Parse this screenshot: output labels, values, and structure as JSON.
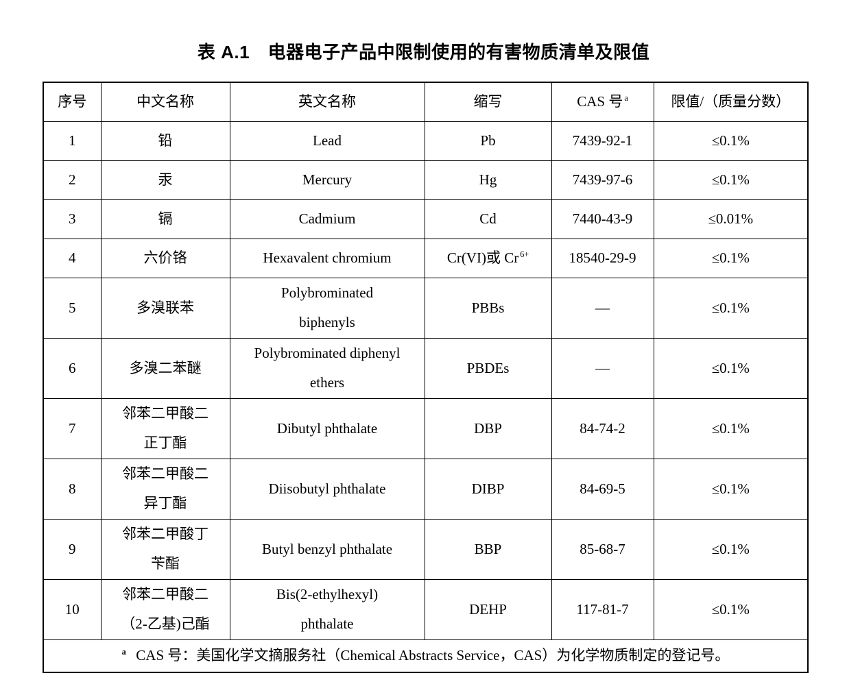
{
  "colors": {
    "text": "#000000",
    "border": "#000000",
    "background": "#ffffff"
  },
  "title": "表 A.1　电器电子产品中限制使用的有害物质清单及限值",
  "table": {
    "headers": {
      "serial": "序号",
      "chinese_name": "中文名称",
      "english_name": "英文名称",
      "abbreviation": "缩写",
      "cas_number": "CAS 号^{a}",
      "limit": "限值/（质量分数）"
    },
    "rows": [
      {
        "no": "1",
        "cn": "铅",
        "en": "Lead",
        "abbr": "Pb",
        "cas": "7439-92-1",
        "limit": "≤0.1%"
      },
      {
        "no": "2",
        "cn": "汞",
        "en": "Mercury",
        "abbr": "Hg",
        "cas": "7439-97-6",
        "limit": "≤0.1%"
      },
      {
        "no": "3",
        "cn": "镉",
        "en": "Cadmium",
        "abbr": "Cd",
        "cas": "7440-43-9",
        "limit": "≤0.01%"
      },
      {
        "no": "4",
        "cn": "六价铬",
        "en": "Hexavalent chromium",
        "abbr": "Cr(VI)或 Cr^{6+}",
        "cas": "18540-29-9",
        "limit": "≤0.1%"
      },
      {
        "no": "5",
        "cn": "多溴联苯",
        "en": "Polybrominated\nbiphenyls",
        "abbr": "PBBs",
        "cas": "—",
        "limit": "≤0.1%"
      },
      {
        "no": "6",
        "cn": "多溴二苯醚",
        "en": "Polybrominated diphenyl\nethers",
        "abbr": "PBDEs",
        "cas": "—",
        "limit": "≤0.1%"
      },
      {
        "no": "7",
        "cn": "邻苯二甲酸二\n正丁酯",
        "en": "Dibutyl phthalate",
        "abbr": "DBP",
        "cas": "84-74-2",
        "limit": "≤0.1%"
      },
      {
        "no": "8",
        "cn": "邻苯二甲酸二\n异丁酯",
        "en": "Diisobutyl phthalate",
        "abbr": "DIBP",
        "cas": "84-69-5",
        "limit": "≤0.1%"
      },
      {
        "no": "9",
        "cn": "邻苯二甲酸丁\n苄酯",
        "en": "Butyl benzyl phthalate",
        "abbr": "BBP",
        "cas": "85-68-7",
        "limit": "≤0.1%"
      },
      {
        "no": "10",
        "cn": "邻苯二甲酸二\n（2-乙基)己酯",
        "en": "Bis(2-ethylhexyl)\nphthalate",
        "abbr": "DEHP",
        "cas": "117-81-7",
        "limit": "≤0.1%"
      }
    ],
    "footnote": "^{a} CAS 号：美国化学文摘服务社（Chemical Abstracts Service，CAS）为化学物质制定的登记号。"
  }
}
